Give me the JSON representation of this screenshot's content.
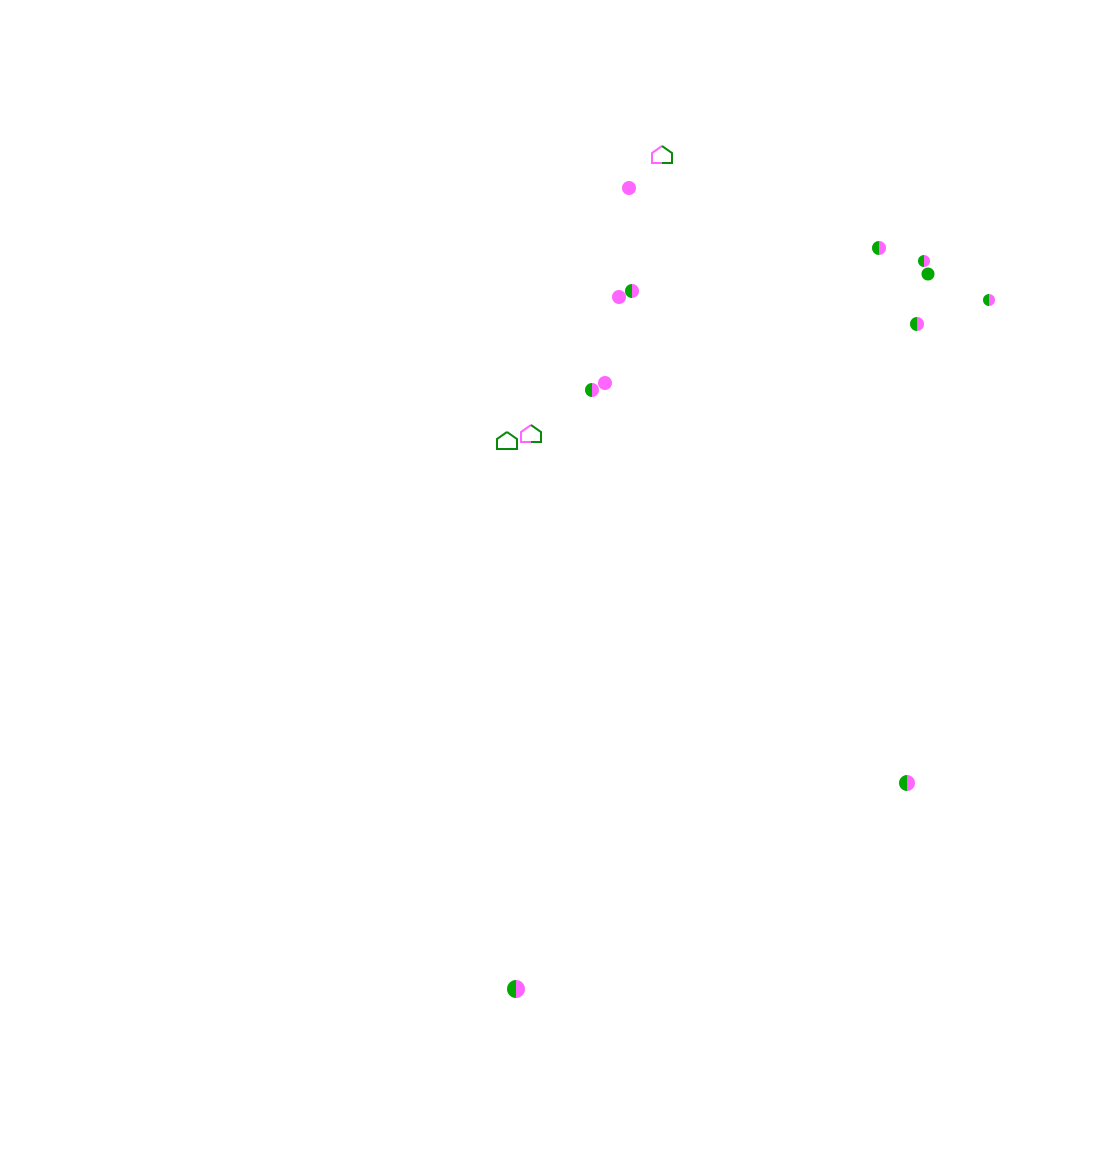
{
  "colors": {
    "pink": "#ff66ff",
    "green": "#00a800",
    "outline_green": "#0a8a0a"
  },
  "markers": [
    {
      "shape": "house-icon",
      "fill": "half"
    },
    {
      "shape": "circle",
      "fill": "pink"
    },
    {
      "shape": "circle",
      "fill": "half"
    },
    {
      "shape": "circle",
      "fill": "half"
    },
    {
      "shape": "circle",
      "fill": "green"
    },
    {
      "shape": "circle",
      "fill": "half"
    },
    {
      "shape": "circle",
      "fill": "half"
    },
    {
      "shape": "circle",
      "fill": "half"
    },
    {
      "shape": "circle",
      "fill": "pink"
    },
    {
      "shape": "circle",
      "fill": "pink"
    },
    {
      "shape": "circle",
      "fill": "half"
    },
    {
      "shape": "house-icon",
      "fill": "green"
    },
    {
      "shape": "house-icon",
      "fill": "half"
    },
    {
      "shape": "circle",
      "fill": "half"
    },
    {
      "shape": "circle",
      "fill": "half"
    }
  ]
}
